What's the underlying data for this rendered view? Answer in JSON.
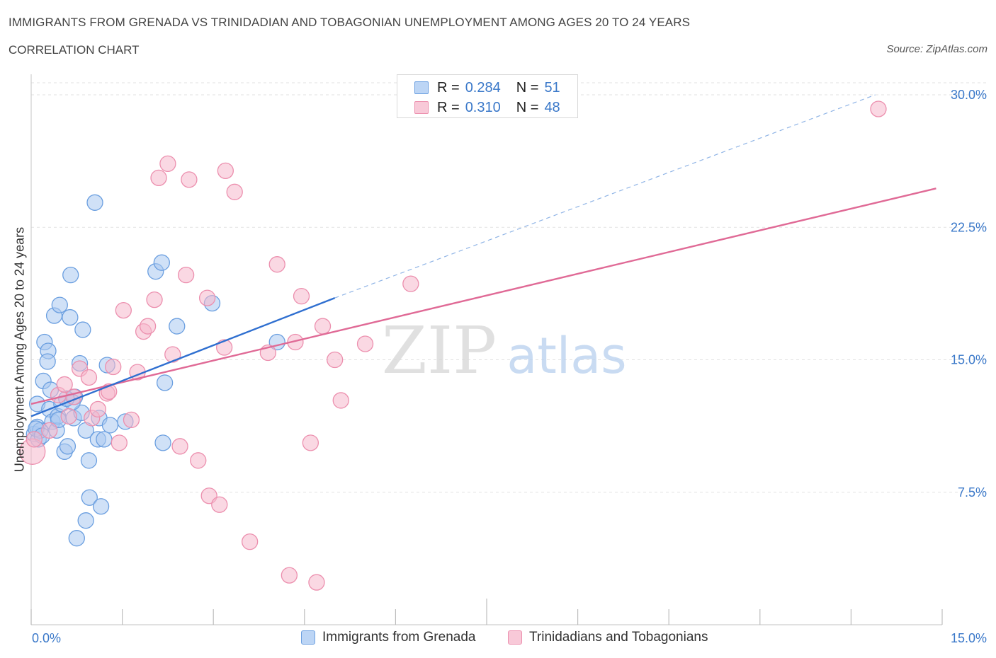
{
  "header": {
    "title": "IMMIGRANTS FROM GRENADA VS TRINIDADIAN AND TOBAGONIAN UNEMPLOYMENT AMONG AGES 20 TO 24 YEARS",
    "subtitle": "CORRELATION CHART",
    "source": "Source: ZipAtlas.com"
  },
  "legend_top": {
    "rows": [
      {
        "r_label": "R =",
        "r_value": "0.284",
        "n_label": "N =",
        "n_value": "51"
      },
      {
        "r_label": "R =",
        "r_value": "0.310",
        "n_label": "N =",
        "n_value": "48"
      }
    ]
  },
  "legend_bottom": {
    "items": [
      {
        "label": "Immigrants from Grenada"
      },
      {
        "label": "Trinidadians and Tobagonians"
      }
    ]
  },
  "watermark": {
    "zip": "ZIP",
    "atlas": "atlas"
  },
  "colors": {
    "blue_fill": "#a9c8f0",
    "blue_stroke": "#6b9fe0",
    "blue_line": "#2f6fd0",
    "pink_fill": "#f5b8cc",
    "pink_stroke": "#ec8fae",
    "pink_line": "#e06a96",
    "tick_label": "#3a78c9",
    "grid": "#e2e2e2"
  },
  "chart_data": {
    "type": "scatter",
    "ylabel": "Unemployment Among Ages 20 to 24 years",
    "xlim": [
      0,
      15
    ],
    "ylim": [
      0,
      30
    ],
    "x_tick_labels": [
      {
        "value": 0,
        "label": "0.0%"
      },
      {
        "value": 15,
        "label": "15.0%"
      }
    ],
    "y_tick_labels": [
      {
        "value": 7.5,
        "label": "7.5%"
      },
      {
        "value": 15,
        "label": "15.0%"
      },
      {
        "value": 22.5,
        "label": "22.5%"
      },
      {
        "value": 30,
        "label": "30.0%"
      }
    ],
    "grid": true,
    "series": [
      {
        "name": "Immigrants from Grenada",
        "color": "blue",
        "trend": {
          "x0": 0.0,
          "y0": 11.8,
          "x1": 5.0,
          "y1": 18.5,
          "dashed_to_x": 13.9,
          "dashed_to_y": 30.0
        },
        "points": [
          [
            0.05,
            10.8,
            11
          ],
          [
            0.1,
            11.2,
            11
          ],
          [
            0.12,
            10.5,
            11
          ],
          [
            0.15,
            11.0,
            11
          ],
          [
            0.1,
            12.5,
            11
          ],
          [
            0.2,
            13.8,
            11
          ],
          [
            0.22,
            16.0,
            11
          ],
          [
            0.28,
            15.5,
            11
          ],
          [
            0.27,
            14.9,
            11
          ],
          [
            0.3,
            12.2,
            11
          ],
          [
            0.32,
            13.3,
            11
          ],
          [
            0.35,
            11.5,
            11
          ],
          [
            0.38,
            17.5,
            11
          ],
          [
            0.42,
            11.0,
            11
          ],
          [
            0.44,
            11.8,
            11
          ],
          [
            0.47,
            18.1,
            11
          ],
          [
            0.5,
            12.5,
            11
          ],
          [
            0.55,
            9.8,
            11
          ],
          [
            0.6,
            10.1,
            11
          ],
          [
            0.64,
            17.4,
            11
          ],
          [
            0.65,
            19.8,
            11
          ],
          [
            0.7,
            11.7,
            11
          ],
          [
            0.72,
            12.9,
            11
          ],
          [
            0.8,
            14.8,
            11
          ],
          [
            0.83,
            12.0,
            11
          ],
          [
            0.85,
            16.7,
            11
          ],
          [
            0.9,
            11.0,
            11
          ],
          [
            0.95,
            9.3,
            11
          ],
          [
            0.96,
            7.2,
            11
          ],
          [
            0.9,
            5.9,
            11
          ],
          [
            0.75,
            4.9,
            11
          ],
          [
            0.68,
            12.6,
            11
          ],
          [
            1.05,
            23.9,
            11
          ],
          [
            1.1,
            10.5,
            11
          ],
          [
            1.12,
            11.7,
            11
          ],
          [
            1.15,
            6.7,
            11
          ],
          [
            1.2,
            10.5,
            11
          ],
          [
            1.25,
            14.7,
            11
          ],
          [
            1.3,
            11.3,
            11
          ],
          [
            1.55,
            11.5,
            11
          ],
          [
            2.05,
            20.0,
            11
          ],
          [
            2.15,
            20.5,
            11
          ],
          [
            2.17,
            10.3,
            11
          ],
          [
            2.2,
            13.7,
            11
          ],
          [
            2.4,
            16.9,
            11
          ],
          [
            2.98,
            18.2,
            11
          ],
          [
            4.05,
            16.0,
            11
          ],
          [
            0.08,
            11.1,
            11
          ],
          [
            0.18,
            10.7,
            11
          ],
          [
            0.58,
            12.8,
            11
          ],
          [
            0.45,
            11.6,
            11
          ]
        ]
      },
      {
        "name": "Trinidadians and Tobagonians",
        "color": "pink",
        "trend": {
          "x0": 0.0,
          "y0": 12.5,
          "x1": 14.9,
          "y1": 24.7
        },
        "points": [
          [
            0.02,
            9.8,
            18
          ],
          [
            0.05,
            10.5,
            11
          ],
          [
            0.3,
            11.0,
            11
          ],
          [
            0.45,
            13.0,
            11
          ],
          [
            0.55,
            13.6,
            11
          ],
          [
            0.62,
            11.8,
            11
          ],
          [
            0.7,
            12.9,
            11
          ],
          [
            0.8,
            14.5,
            11
          ],
          [
            0.95,
            14.0,
            11
          ],
          [
            1.0,
            11.7,
            11
          ],
          [
            1.1,
            12.2,
            11
          ],
          [
            1.25,
            13.1,
            11
          ],
          [
            1.35,
            14.6,
            11
          ],
          [
            1.45,
            10.3,
            11
          ],
          [
            1.52,
            17.8,
            11
          ],
          [
            1.65,
            11.6,
            11
          ],
          [
            1.75,
            14.3,
            11
          ],
          [
            1.85,
            16.6,
            11
          ],
          [
            1.92,
            16.9,
            11
          ],
          [
            2.03,
            18.4,
            11
          ],
          [
            2.1,
            25.3,
            11
          ],
          [
            2.25,
            26.1,
            11
          ],
          [
            2.33,
            15.3,
            11
          ],
          [
            2.45,
            10.1,
            11
          ],
          [
            2.55,
            19.8,
            11
          ],
          [
            2.6,
            25.2,
            11
          ],
          [
            2.75,
            9.3,
            11
          ],
          [
            2.9,
            18.5,
            11
          ],
          [
            2.93,
            7.3,
            11
          ],
          [
            3.1,
            6.8,
            11
          ],
          [
            3.18,
            15.7,
            11
          ],
          [
            3.2,
            25.7,
            11
          ],
          [
            3.35,
            24.5,
            11
          ],
          [
            3.6,
            4.7,
            11
          ],
          [
            3.9,
            15.4,
            11
          ],
          [
            4.05,
            20.4,
            11
          ],
          [
            4.25,
            2.8,
            11
          ],
          [
            4.35,
            16.0,
            11
          ],
          [
            4.45,
            18.6,
            11
          ],
          [
            4.6,
            10.3,
            11
          ],
          [
            4.7,
            2.4,
            11
          ],
          [
            4.8,
            16.9,
            11
          ],
          [
            5.0,
            15.0,
            11
          ],
          [
            5.1,
            12.7,
            11
          ],
          [
            5.5,
            15.9,
            11
          ],
          [
            6.25,
            19.3,
            11
          ],
          [
            13.95,
            29.2,
            11
          ],
          [
            1.28,
            13.2,
            11
          ]
        ]
      }
    ]
  }
}
